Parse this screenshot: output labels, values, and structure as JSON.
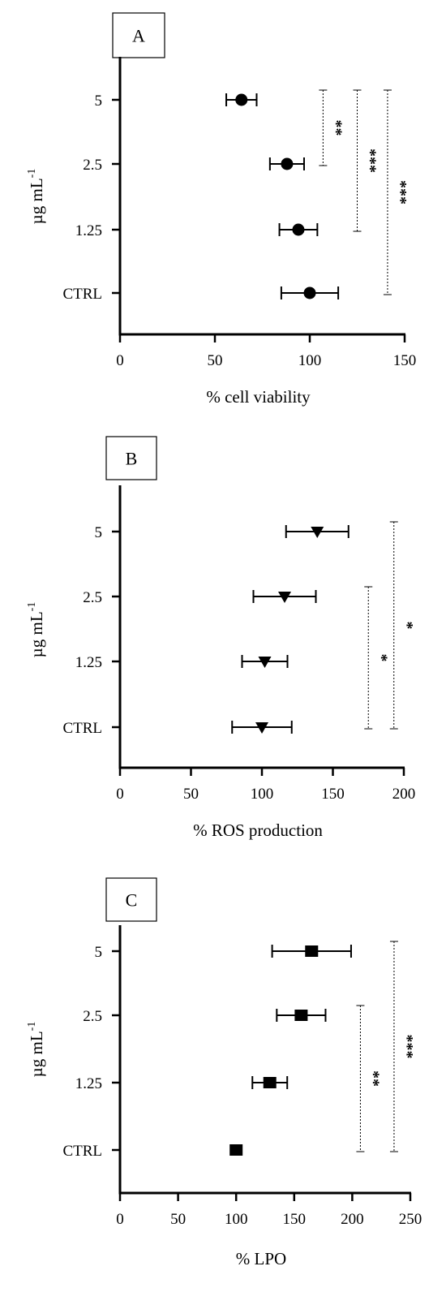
{
  "chart_data": [
    {
      "type": "scatter",
      "panel_label": "A",
      "marker": "circle",
      "xlabel": "% cell viability",
      "ylabel": "µg mL",
      "ylabel_sup": "-1",
      "xlim": [
        0,
        150
      ],
      "xticks": [
        "0",
        "50",
        "100",
        "150"
      ],
      "categories": [
        "CTRL",
        "1.25",
        "2.5",
        "5"
      ],
      "values": [
        100,
        94,
        88,
        64
      ],
      "error": [
        15,
        10,
        9,
        8
      ],
      "significance": [
        {
          "from": "2.5",
          "to": "5",
          "label": "**",
          "x": 107
        },
        {
          "from": "1.25",
          "to": "5",
          "label": "***",
          "x": 125
        },
        {
          "from": "CTRL",
          "to": "5",
          "label": "***",
          "x": 141
        }
      ]
    },
    {
      "type": "scatter",
      "panel_label": "B",
      "marker": "triangle-down",
      "xlabel": "% ROS production",
      "ylabel": "µg mL",
      "ylabel_sup": "-1",
      "xlim": [
        0,
        200
      ],
      "xticks": [
        "0",
        "50",
        "100",
        "150",
        "200"
      ],
      "categories": [
        "CTRL",
        "1.25",
        "2.5",
        "5"
      ],
      "values": [
        100,
        102,
        116,
        139
      ],
      "error": [
        21,
        16,
        22,
        22
      ],
      "significance": [
        {
          "from": "CTRL",
          "to": "2.5",
          "label": "*",
          "x": 175
        },
        {
          "from": "CTRL",
          "to": "5",
          "label": "*",
          "x": 193
        }
      ]
    },
    {
      "type": "scatter",
      "panel_label": "C",
      "marker": "square",
      "xlabel": "% LPO",
      "ylabel": "µg mL",
      "ylabel_sup": "-1",
      "xlim": [
        0,
        250
      ],
      "xticks": [
        "0",
        "50",
        "100",
        "150",
        "200",
        "250"
      ],
      "categories": [
        "CTRL",
        "1.25",
        "2.5",
        "5"
      ],
      "values": [
        100,
        129,
        156,
        165
      ],
      "error": [
        0,
        15,
        21,
        34
      ],
      "significance": [
        {
          "from": "CTRL",
          "to": "2.5",
          "label": "**",
          "x": 207
        },
        {
          "from": "CTRL",
          "to": "5",
          "label": "***",
          "x": 236
        }
      ]
    }
  ]
}
